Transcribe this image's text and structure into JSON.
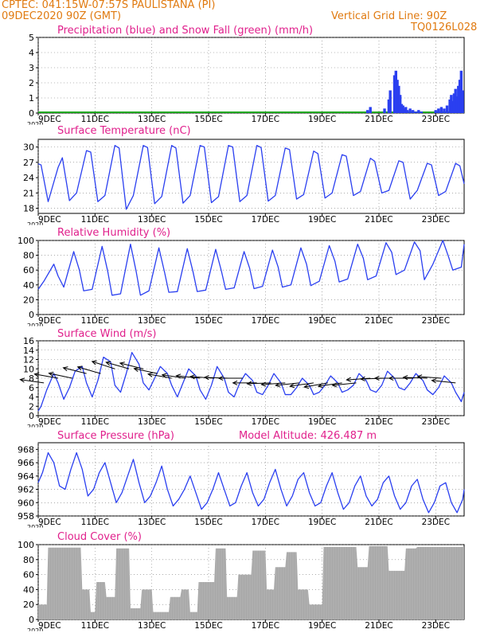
{
  "header": {
    "line1": "CPTEC:   041:15W-07:57S   PAULISTANA (PI)",
    "line2": "09DEC2020 90Z (GMT)",
    "grid_note": "Vertical Grid Line: 90Z",
    "run_id": "TQ0126L028"
  },
  "colors": {
    "header": "#e07a10",
    "title": "#e0208c",
    "line": "#2a3ff0",
    "cloud": "#a8a8a8",
    "snow": "#22aa22",
    "wind_arrow": "#000000"
  },
  "x_axis": {
    "start": "9DEC",
    "ticks": [
      "9DEC",
      "11DEC",
      "13DEC",
      "15DEC",
      "17DEC",
      "19DEC",
      "21DEC",
      "23DEC"
    ],
    "tick_days": [
      0,
      2,
      4,
      6,
      8,
      10,
      12,
      14
    ],
    "span_days": 15,
    "year_fragment": "2020"
  },
  "chart_data": [
    {
      "id": "precip",
      "type": "bar",
      "title": "Precipitation (blue) and Snow Fall (green) (mm/h)",
      "ylim": [
        0,
        5
      ],
      "yticks": [
        0,
        1,
        2,
        3,
        4,
        5
      ],
      "series": [
        {
          "name": "Precipitation",
          "color": "#2a3ff0",
          "x": [
            11.6,
            11.7,
            12.2,
            12.35,
            12.4,
            12.55,
            12.6,
            12.65,
            12.7,
            12.75,
            12.8,
            12.85,
            12.9,
            12.95,
            13.0,
            13.1,
            13.2,
            13.3,
            13.4,
            13.5,
            14.0,
            14.1,
            14.2,
            14.3,
            14.4,
            14.5,
            14.55,
            14.6,
            14.65,
            14.7,
            14.75,
            14.8,
            14.85,
            14.9,
            14.95
          ],
          "values": [
            0.2,
            0.4,
            0.3,
            0.9,
            1.5,
            2.5,
            2.8,
            2.2,
            1.8,
            1.2,
            0.6,
            0.5,
            0.3,
            0.4,
            0.2,
            0.3,
            0.2,
            0.1,
            0.2,
            0.1,
            0.2,
            0.3,
            0.4,
            0.3,
            0.5,
            0.9,
            1.2,
            0.8,
            1.3,
            1.6,
            1.1,
            1.8,
            2.2,
            2.8,
            1.5
          ]
        },
        {
          "name": "Snow Fall",
          "color": "#22aa22",
          "x": [
            0,
            15
          ],
          "values": [
            0,
            0
          ]
        }
      ]
    },
    {
      "id": "temp",
      "type": "line",
      "title": "Surface Temperature (nC)",
      "ylim": [
        17,
        31.5
      ],
      "yticks": [
        18,
        21,
        24,
        27,
        30
      ],
      "series": [
        {
          "name": "Surface Temperature",
          "color": "#2a3ff0",
          "x": [
            0,
            0.1,
            0.35,
            0.7,
            0.85,
            1.1,
            1.35,
            1.7,
            1.85,
            2.1,
            2.35,
            2.7,
            2.85,
            3.1,
            3.35,
            3.7,
            3.85,
            4.1,
            4.35,
            4.7,
            4.85,
            5.1,
            5.35,
            5.7,
            5.85,
            6.1,
            6.35,
            6.7,
            6.85,
            7.1,
            7.35,
            7.7,
            7.85,
            8.1,
            8.35,
            8.7,
            8.85,
            9.1,
            9.35,
            9.7,
            9.85,
            10.1,
            10.35,
            10.7,
            10.85,
            11.1,
            11.35,
            11.7,
            11.85,
            12.1,
            12.35,
            12.7,
            12.85,
            13.1,
            13.35,
            13.7,
            13.85,
            14.1,
            14.35,
            14.7,
            14.85,
            15
          ],
          "values": [
            26.7,
            26.5,
            19.3,
            26.0,
            27.9,
            19.5,
            21.0,
            29.3,
            29.0,
            19.3,
            20.5,
            30.3,
            29.8,
            17.8,
            20.5,
            30.3,
            29.9,
            18.9,
            20.3,
            30.3,
            29.8,
            19.0,
            20.5,
            30.3,
            30.0,
            19.1,
            20.3,
            30.3,
            30.0,
            19.3,
            20.5,
            30.3,
            29.9,
            19.4,
            20.5,
            29.8,
            29.5,
            19.8,
            20.7,
            29.2,
            28.7,
            20.0,
            21.0,
            28.5,
            28.2,
            20.5,
            21.3,
            27.8,
            27.2,
            21.0,
            21.5,
            27.3,
            27.0,
            19.8,
            21.5,
            26.8,
            26.5,
            20.5,
            21.3,
            26.8,
            26.3,
            22.8
          ]
        }
      ]
    },
    {
      "id": "rh",
      "type": "line",
      "title": "Relative Humidity (%)",
      "ylim": [
        0,
        100
      ],
      "yticks": [
        0,
        20,
        40,
        60,
        80,
        100
      ],
      "series": [
        {
          "name": "Relative Humidity",
          "color": "#2a3ff0",
          "x": [
            0,
            0.2,
            0.55,
            0.7,
            0.9,
            1.25,
            1.45,
            1.6,
            1.9,
            2.25,
            2.45,
            2.6,
            2.9,
            3.25,
            3.45,
            3.6,
            3.9,
            4.25,
            4.45,
            4.6,
            4.9,
            5.25,
            5.45,
            5.6,
            5.9,
            6.25,
            6.45,
            6.6,
            6.9,
            7.25,
            7.45,
            7.6,
            7.9,
            8.25,
            8.45,
            8.6,
            8.9,
            9.25,
            9.45,
            9.6,
            9.9,
            10.25,
            10.45,
            10.6,
            10.9,
            11.25,
            11.45,
            11.6,
            11.9,
            12.25,
            12.45,
            12.6,
            12.9,
            13.25,
            13.45,
            13.6,
            13.9,
            14.25,
            14.45,
            14.6,
            14.9,
            15
          ],
          "values": [
            34,
            45,
            68,
            52,
            37,
            85,
            60,
            32,
            34,
            92,
            58,
            26,
            28,
            95,
            58,
            26,
            32,
            90,
            57,
            30,
            31,
            89,
            58,
            31,
            33,
            88,
            59,
            34,
            36,
            85,
            62,
            35,
            38,
            87,
            64,
            37,
            40,
            90,
            68,
            39,
            45,
            93,
            72,
            44,
            48,
            95,
            76,
            47,
            52,
            97,
            84,
            54,
            60,
            98,
            86,
            47,
            68,
            100,
            78,
            60,
            64,
            95
          ]
        }
      ]
    },
    {
      "id": "wind",
      "type": "line",
      "title": "Surface Wind (m/s)",
      "ylim": [
        0,
        16
      ],
      "yticks": [
        0,
        2,
        4,
        6,
        8,
        10,
        12,
        14,
        16
      ],
      "series": [
        {
          "name": "Surface Wind",
          "color": "#2a3ff0",
          "x": [
            0,
            0.1,
            0.3,
            0.55,
            0.7,
            0.9,
            1.1,
            1.3,
            1.55,
            1.7,
            1.9,
            2.1,
            2.3,
            2.55,
            2.7,
            2.9,
            3.1,
            3.3,
            3.55,
            3.7,
            3.9,
            4.1,
            4.3,
            4.55,
            4.7,
            4.9,
            5.1,
            5.3,
            5.55,
            5.7,
            5.9,
            6.1,
            6.3,
            6.55,
            6.7,
            6.9,
            7.1,
            7.3,
            7.55,
            7.7,
            7.9,
            8.1,
            8.3,
            8.55,
            8.7,
            8.9,
            9.1,
            9.3,
            9.55,
            9.7,
            9.9,
            10.1,
            10.3,
            10.55,
            10.7,
            10.9,
            11.1,
            11.3,
            11.55,
            11.7,
            11.9,
            12.1,
            12.3,
            12.55,
            12.7,
            12.9,
            13.1,
            13.3,
            13.55,
            13.7,
            13.9,
            14.1,
            14.3,
            14.55,
            14.7,
            14.9,
            15
          ],
          "values": [
            1.0,
            2.0,
            5.5,
            9.0,
            7.0,
            3.5,
            6.0,
            9.5,
            10.5,
            7.0,
            4.0,
            7.5,
            12.5,
            11.5,
            6.5,
            5.0,
            9.0,
            13.5,
            11.0,
            7.0,
            5.5,
            8.0,
            10.5,
            9.0,
            6.5,
            4.0,
            7.0,
            10.0,
            8.5,
            5.5,
            3.5,
            6.5,
            10.5,
            8.0,
            5.0,
            4.0,
            7.0,
            9.0,
            7.5,
            5.0,
            4.5,
            6.5,
            9.0,
            7.0,
            4.5,
            4.5,
            6.0,
            8.0,
            6.5,
            4.5,
            5.0,
            6.5,
            8.5,
            7.0,
            5.0,
            5.5,
            6.5,
            9.0,
            7.5,
            5.5,
            5.0,
            6.5,
            9.5,
            8.0,
            6.0,
            5.5,
            7.0,
            9.0,
            7.5,
            5.5,
            4.5,
            6.0,
            8.5,
            7.0,
            5.0,
            3.0,
            5.0
          ]
        }
      ],
      "arrows": {
        "x": [
          0.2,
          0.7,
          1.2,
          1.7,
          2.2,
          2.7,
          3.2,
          3.7,
          4.2,
          4.7,
          5.2,
          5.7,
          6.2,
          6.7,
          7.2,
          7.7,
          8.2,
          8.7,
          9.2,
          9.7,
          10.2,
          10.7,
          11.2,
          11.7,
          12.2,
          12.7,
          13.2,
          13.7,
          14.2,
          14.7
        ],
        "speed": [
          7,
          8,
          8,
          9,
          9,
          10,
          10,
          10,
          9,
          8,
          8,
          8,
          8,
          8,
          8,
          7,
          7,
          7,
          7,
          7,
          7,
          7,
          7,
          8,
          8,
          8,
          8,
          8,
          8,
          7
        ],
        "angle": [
          8,
          10,
          12,
          14,
          16,
          18,
          16,
          14,
          12,
          10,
          8,
          6,
          4,
          2,
          0,
          0,
          -2,
          -4,
          -6,
          -8,
          -10,
          -8,
          -6,
          -4,
          -2,
          0,
          0,
          2,
          4,
          6
        ]
      }
    },
    {
      "id": "pressure",
      "type": "line",
      "title": "Surface Pressure (hPa)",
      "subtitle": "Model Altitude: 426.487 m",
      "ylim": [
        958,
        969
      ],
      "yticks": [
        958,
        960,
        962,
        964,
        966,
        968
      ],
      "series": [
        {
          "name": "Surface Pressure",
          "color": "#2a3ff0",
          "x": [
            0,
            0.15,
            0.35,
            0.55,
            0.75,
            0.95,
            1.15,
            1.35,
            1.55,
            1.75,
            1.95,
            2.15,
            2.35,
            2.55,
            2.75,
            2.95,
            3.15,
            3.35,
            3.55,
            3.75,
            3.95,
            4.15,
            4.35,
            4.55,
            4.75,
            4.95,
            5.15,
            5.35,
            5.55,
            5.75,
            5.95,
            6.15,
            6.35,
            6.55,
            6.75,
            6.95,
            7.15,
            7.35,
            7.55,
            7.75,
            7.95,
            8.15,
            8.35,
            8.55,
            8.75,
            8.95,
            9.15,
            9.35,
            9.55,
            9.75,
            9.95,
            10.15,
            10.35,
            10.55,
            10.75,
            10.95,
            11.15,
            11.35,
            11.55,
            11.75,
            11.95,
            12.15,
            12.35,
            12.55,
            12.75,
            12.95,
            13.15,
            13.35,
            13.55,
            13.75,
            13.95,
            14.15,
            14.35,
            14.55,
            14.75,
            14.95,
            15
          ],
          "values": [
            963.0,
            964.5,
            967.5,
            966.0,
            962.5,
            962.0,
            965.0,
            967.5,
            965.0,
            961.0,
            962.0,
            964.5,
            966.0,
            963.0,
            960.0,
            961.5,
            964.0,
            966.5,
            963.0,
            960.0,
            961.0,
            963.0,
            965.5,
            962.0,
            959.5,
            960.5,
            962.0,
            964.0,
            961.5,
            959.0,
            960.0,
            962.0,
            964.5,
            962.0,
            959.5,
            960.0,
            962.5,
            964.5,
            961.5,
            959.5,
            960.5,
            963.0,
            965.0,
            962.0,
            959.5,
            961.0,
            963.5,
            964.5,
            961.5,
            959.5,
            960.0,
            962.5,
            964.5,
            961.5,
            959.0,
            960.0,
            962.5,
            964.0,
            961.0,
            959.5,
            960.5,
            963.0,
            964.0,
            961.0,
            959.0,
            960.0,
            962.5,
            963.5,
            960.5,
            958.5,
            960.0,
            962.5,
            963.0,
            960.0,
            958.5,
            960.5,
            962.0
          ]
        }
      ]
    },
    {
      "id": "cloud",
      "type": "area",
      "title": "Cloud Cover (%)",
      "ylim": [
        0,
        100
      ],
      "yticks": [
        0,
        20,
        40,
        60,
        80,
        100
      ],
      "series": [
        {
          "name": "Cloud Cover",
          "color": "#a8a8a8",
          "x": [
            0,
            0.3,
            0.35,
            1.5,
            1.55,
            1.8,
            1.85,
            2.0,
            2.05,
            2.35,
            2.4,
            2.7,
            2.75,
            3.2,
            3.25,
            3.6,
            3.65,
            4.0,
            4.05,
            4.6,
            4.65,
            5.0,
            5.05,
            5.3,
            5.35,
            5.6,
            5.65,
            6.2,
            6.25,
            6.6,
            6.65,
            7.0,
            7.05,
            7.5,
            7.55,
            8.0,
            8.05,
            8.3,
            8.35,
            8.7,
            8.75,
            9.1,
            9.15,
            9.5,
            9.55,
            10.0,
            10.05,
            11.2,
            11.25,
            11.6,
            11.65,
            12.3,
            12.35,
            12.9,
            12.95,
            13.3,
            13.35,
            15
          ],
          "values": [
            20,
            20,
            96,
            96,
            40,
            40,
            10,
            10,
            50,
            50,
            30,
            30,
            95,
            95,
            15,
            15,
            40,
            40,
            10,
            10,
            30,
            30,
            40,
            40,
            10,
            10,
            50,
            50,
            95,
            95,
            30,
            30,
            60,
            60,
            92,
            92,
            40,
            40,
            70,
            70,
            90,
            90,
            40,
            40,
            20,
            20,
            97,
            97,
            70,
            70,
            98,
            98,
            65,
            65,
            95,
            95,
            97,
            97
          ]
        }
      ]
    }
  ]
}
